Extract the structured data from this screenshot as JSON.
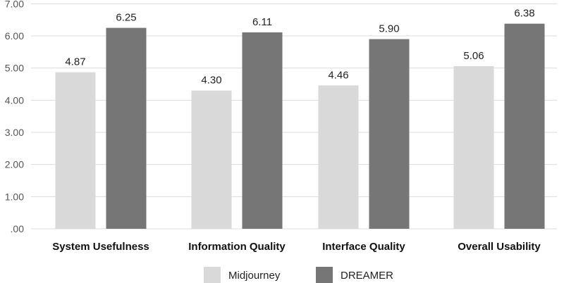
{
  "chart_data": {
    "type": "bar",
    "title": "",
    "xlabel": "",
    "ylabel": "",
    "categories": [
      "System Usefulness",
      "Information Quality",
      "Interface Quality",
      "Overall Usability"
    ],
    "series": [
      {
        "name": "Midjourney",
        "values": [
          4.87,
          4.3,
          4.46,
          5.06
        ],
        "color": "#d9d9d9"
      },
      {
        "name": "DREAMER",
        "values": [
          6.25,
          6.11,
          5.9,
          6.38
        ],
        "color": "#767676"
      }
    ],
    "ylim": [
      0,
      7
    ],
    "yticks": [
      0,
      1,
      2,
      3,
      4,
      5,
      6,
      7
    ],
    "ytick_labels": [
      ".00",
      "1.00",
      "2.00",
      "3.00",
      "4.00",
      "5.00",
      "6.00",
      "7.00"
    ],
    "value_labels": [
      [
        "4.87",
        "4.30",
        "4.46",
        "5.06"
      ],
      [
        "6.25",
        "6.11",
        "5.90",
        "6.38"
      ]
    ],
    "grid": true,
    "gridline_color": "#dcdcdc",
    "legend_position": "bottom"
  }
}
